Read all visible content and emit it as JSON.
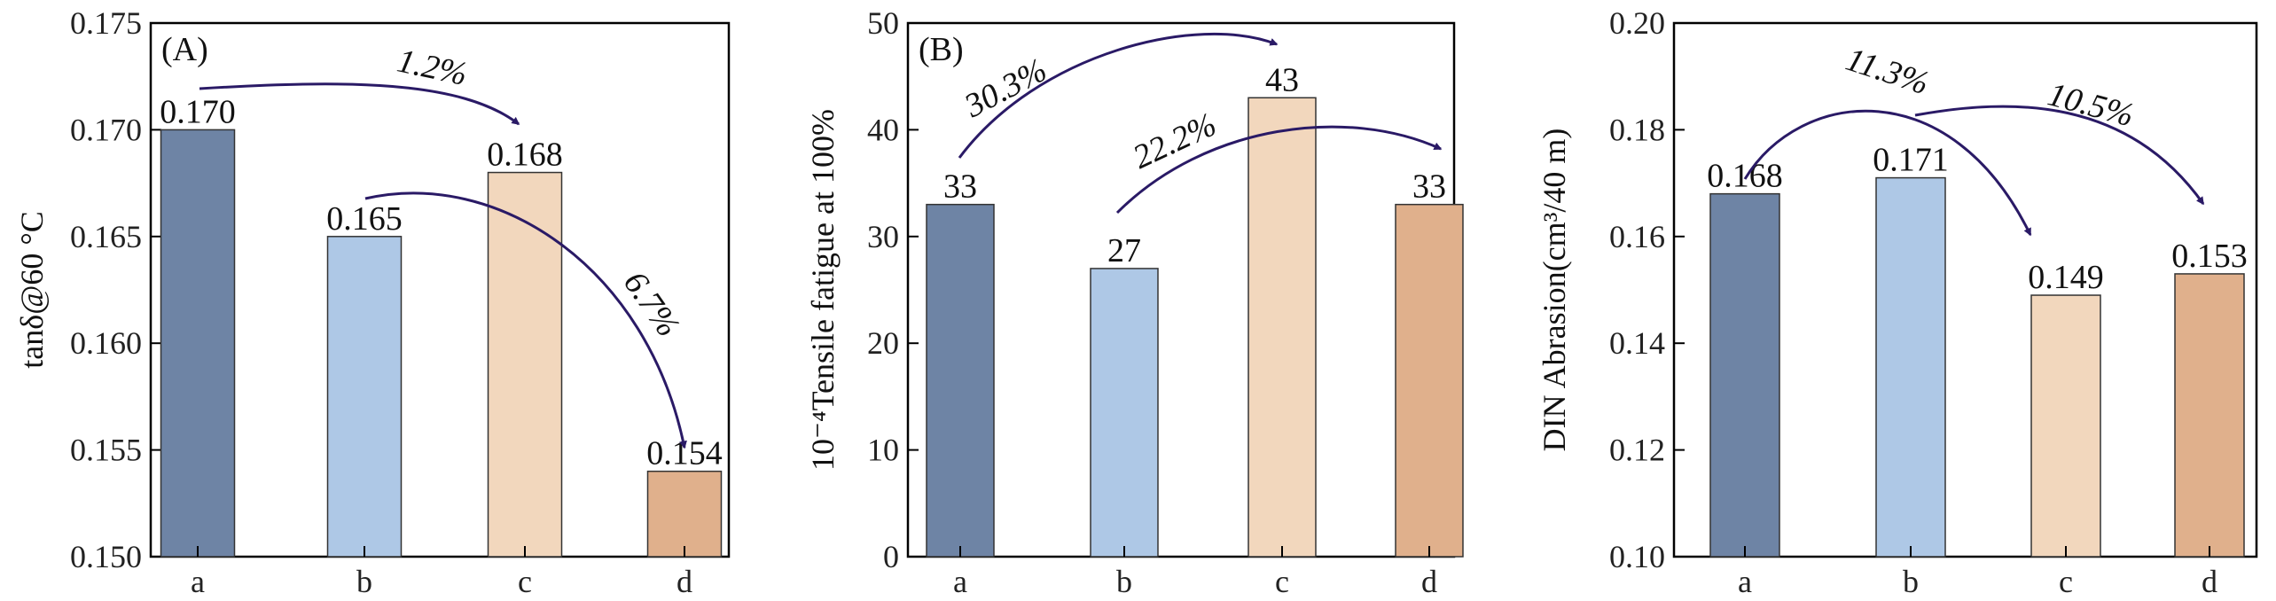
{
  "chart_data": [
    {
      "type": "bar",
      "panel_label": "(A)",
      "ylabel": "tanδ@60 °C",
      "categories": [
        "a",
        "b",
        "c",
        "d"
      ],
      "values": [
        0.17,
        0.165,
        0.168,
        0.154
      ],
      "value_labels": [
        "0.170",
        "0.165",
        "0.168",
        "0.154"
      ],
      "colors": [
        "#6e84a5",
        "#aec8e6",
        "#f2d7bd",
        "#e0b08c"
      ],
      "ylim": [
        0.15,
        0.175
      ],
      "yticks": [
        0.15,
        0.155,
        0.16,
        0.165,
        0.17,
        0.175
      ],
      "ytick_labels": [
        "0.150",
        "0.155",
        "0.160",
        "0.165",
        "0.170",
        "0.175"
      ],
      "annotations": [
        {
          "from": "a",
          "to": "c",
          "text": "1.2%"
        },
        {
          "from": "b",
          "to": "d",
          "text": "6.7%"
        }
      ]
    },
    {
      "type": "bar",
      "panel_label": "(B)",
      "ylabel": "10⁻⁴Tensile fatigue at 100%",
      "categories": [
        "a",
        "b",
        "c",
        "d"
      ],
      "values": [
        33,
        27,
        43,
        33
      ],
      "value_labels": [
        "33",
        "27",
        "43",
        "33"
      ],
      "colors": [
        "#6e84a5",
        "#aec8e6",
        "#f2d7bd",
        "#e0b08c"
      ],
      "ylim": [
        0,
        50
      ],
      "yticks": [
        0,
        10,
        20,
        30,
        40,
        50
      ],
      "ytick_labels": [
        "0",
        "10",
        "20",
        "30",
        "40",
        "50"
      ],
      "annotations": [
        {
          "from": "a",
          "to": "c",
          "text": "30.3%"
        },
        {
          "from": "b",
          "to": "d",
          "text": "22.2%"
        }
      ]
    },
    {
      "type": "bar",
      "panel_label": "",
      "ylabel": "DIN Abrasion(cm³/40 m)",
      "categories": [
        "a",
        "b",
        "c",
        "d"
      ],
      "values": [
        0.168,
        0.171,
        0.149,
        0.153
      ],
      "value_labels": [
        "0.168",
        "0.171",
        "0.149",
        "0.153"
      ],
      "colors": [
        "#6e84a5",
        "#aec8e6",
        "#f2d7bd",
        "#e0b08c"
      ],
      "ylim": [
        0.1,
        0.2
      ],
      "yticks": [
        0.1,
        0.12,
        0.14,
        0.16,
        0.18,
        0.2
      ],
      "ytick_labels": [
        "0.10",
        "0.12",
        "0.14",
        "0.16",
        "0.18",
        "0.20"
      ],
      "annotations": [
        {
          "from": "a",
          "to": "c",
          "text": "11.3%"
        },
        {
          "from": "b",
          "to": "d",
          "text": "10.5%"
        }
      ]
    }
  ]
}
